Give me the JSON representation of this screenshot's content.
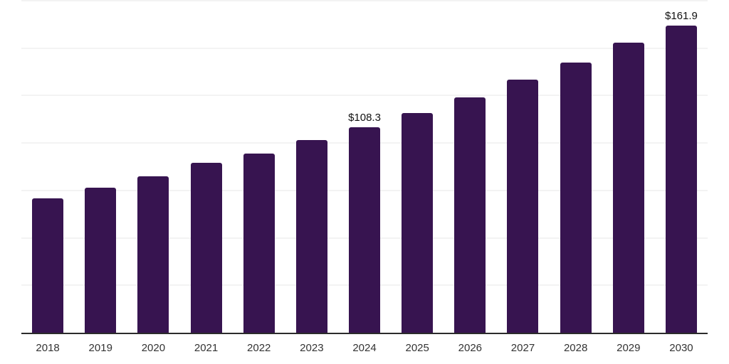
{
  "chart_data": {
    "type": "bar",
    "title": "",
    "xlabel": "",
    "ylabel": "",
    "categories": [
      "2018",
      "2019",
      "2020",
      "2021",
      "2022",
      "2023",
      "2024",
      "2025",
      "2026",
      "2027",
      "2028",
      "2029",
      "2030"
    ],
    "values": [
      71.0,
      76.6,
      82.3,
      89.4,
      94.6,
      101.7,
      108.3,
      115.9,
      124.2,
      133.4,
      142.5,
      152.9,
      161.9
    ],
    "bar_labels": [
      "",
      "",
      "",
      "",
      "",
      "",
      "$108.3",
      "",
      "",
      "",
      "",
      "",
      "$161.9"
    ],
    "ylim": [
      0,
      175
    ],
    "gridline_step": 25,
    "grid": "horizontal",
    "legend": "none",
    "y_axis_tick_labels": "none",
    "bar_color": "#371450",
    "axis_line_color": "#2b2b2b",
    "gridline_color": "#f3f3f3",
    "value_label_color": "#111111",
    "tick_label_color": "#333333",
    "background_color": "#ffffff"
  }
}
